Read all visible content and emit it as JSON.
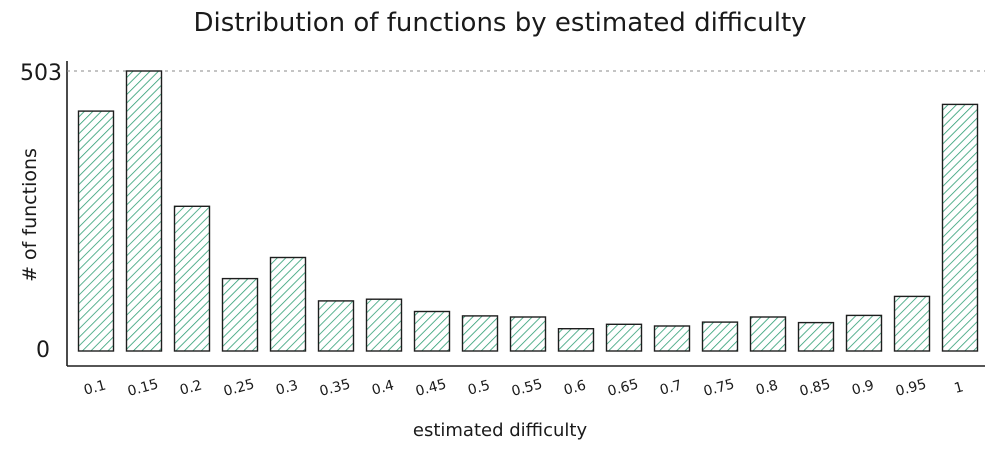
{
  "chart_data": {
    "type": "bar",
    "title": "Distribution of functions by estimated difficulty",
    "xlabel": "estimated difficulty",
    "ylabel": "# of functions",
    "categories": [
      "0.1",
      "0.15",
      "0.2",
      "0.25",
      "0.3",
      "0.35",
      "0.4",
      "0.45",
      "0.5",
      "0.55",
      "0.6",
      "0.65",
      "0.7",
      "0.75",
      "0.8",
      "0.85",
      "0.9",
      "0.95",
      "1"
    ],
    "values": [
      431,
      503,
      260,
      130,
      168,
      90,
      93,
      71,
      63,
      61,
      40,
      48,
      45,
      52,
      61,
      51,
      64,
      98,
      443
    ],
    "yticks": [
      "0",
      "503"
    ],
    "ylim": [
      0,
      503
    ],
    "reference_line": 503,
    "bar_color": "#2e9e74",
    "bar_outline": "#1e1e1e"
  }
}
